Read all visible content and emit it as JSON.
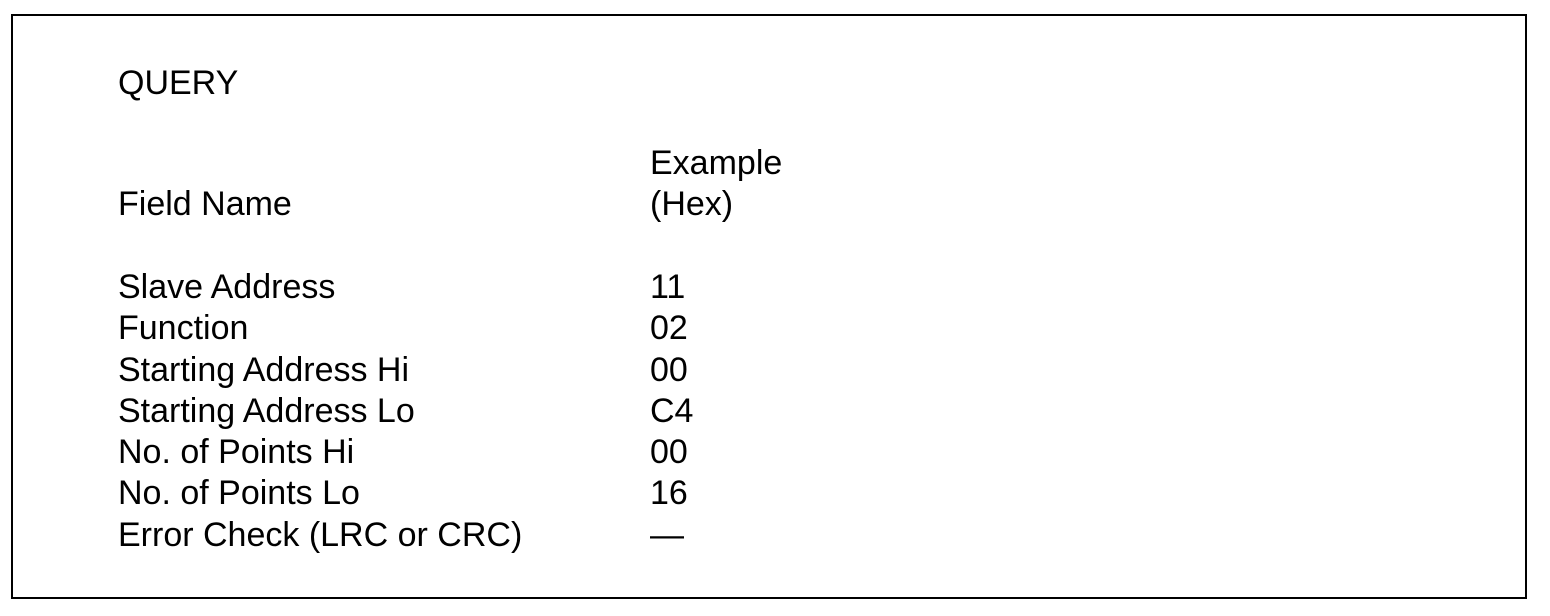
{
  "title": "QUERY",
  "headers": {
    "field_name": "Field Name",
    "example_line1": "Example",
    "example_line2": "(Hex)"
  },
  "rows": [
    {
      "name": "Slave Address",
      "value": "11"
    },
    {
      "name": "Function",
      "value": "02"
    },
    {
      "name": "Starting Address Hi",
      "value": "00"
    },
    {
      "name": "Starting Address Lo",
      "value": "C4"
    },
    {
      "name": "No. of Points Hi",
      "value": "00"
    },
    {
      "name": "No. of Points Lo",
      "value": "16"
    },
    {
      "name": "Error Check (LRC or CRC)",
      "value": "—"
    }
  ]
}
